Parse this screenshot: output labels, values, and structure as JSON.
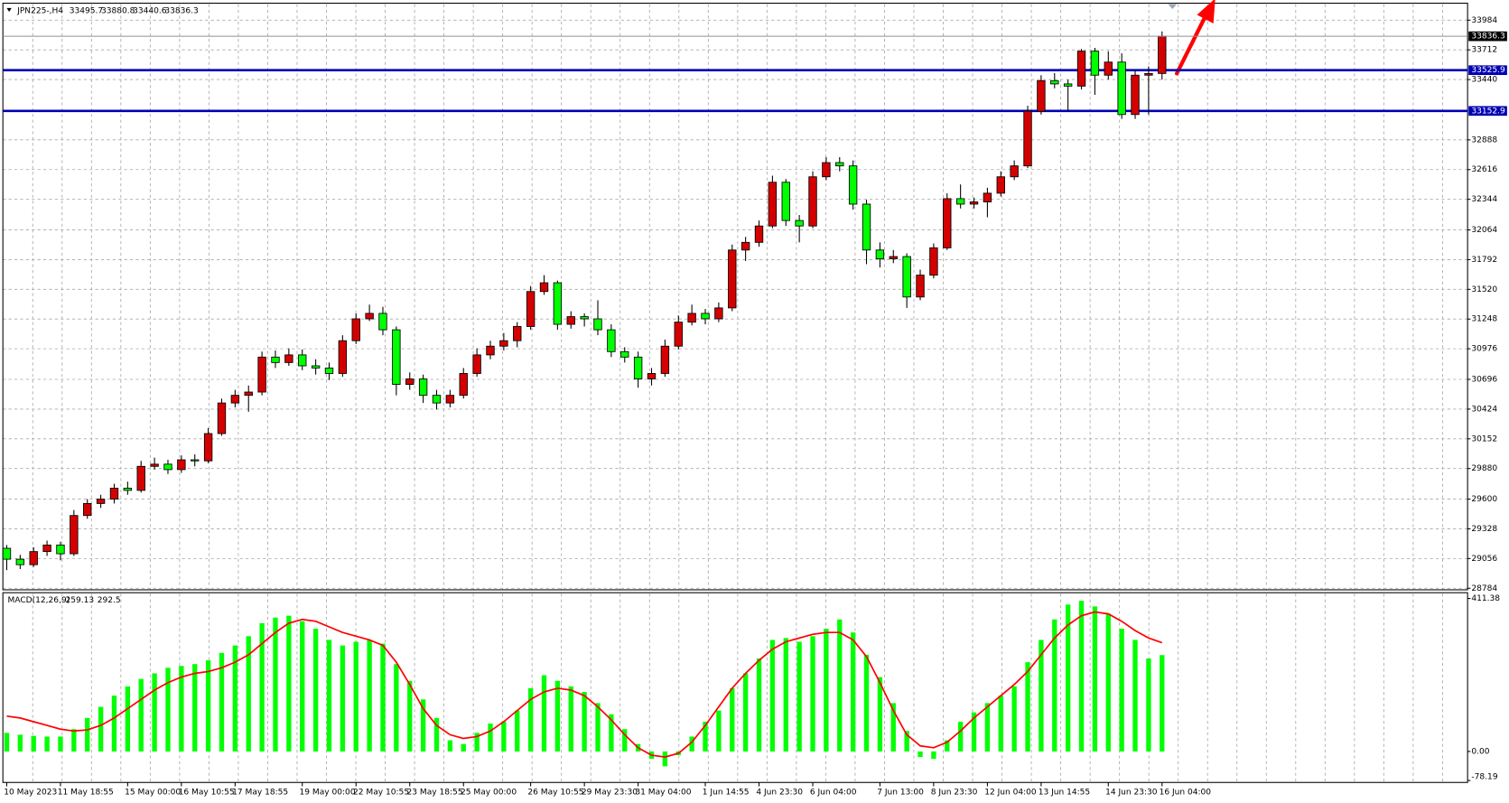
{
  "chart_data": {
    "type": "candlestick",
    "title": "JPN225-,H4",
    "categories": [
      "10 May 2023",
      null,
      null,
      null,
      "11 May 18:55",
      null,
      null,
      null,
      null,
      "15 May 00:00",
      null,
      null,
      null,
      "16 May 10:55",
      null,
      null,
      null,
      "17 May 18:55",
      null,
      null,
      null,
      null,
      "19 May 00:00",
      null,
      null,
      null,
      "22 May 10:55",
      null,
      null,
      null,
      "23 May 18:55",
      null,
      null,
      null,
      "25 May 00:00",
      null,
      null,
      null,
      null,
      "26 May 10:55",
      null,
      null,
      null,
      "29 May 23:30",
      null,
      null,
      null,
      "31 May 04:00",
      null,
      null,
      null,
      null,
      "1 Jun 14:55",
      null,
      null,
      null,
      "4 Jun 23:30",
      null,
      null,
      null,
      "6 Jun 04:00",
      null,
      null,
      null,
      null,
      "7 Jun 13:00",
      null,
      null,
      null,
      "8 Jun 23:30",
      null,
      null,
      null,
      "12 Jun 04:00",
      null,
      null,
      null,
      "13 Jun 14:55",
      null,
      null,
      null,
      null,
      "14 Jun 23:30",
      null,
      null,
      null,
      "16 Jun 04:00"
    ],
    "ohlc": [
      [
        29150,
        29180,
        28950,
        29050
      ],
      [
        29050,
        29090,
        28960,
        29000
      ],
      [
        29000,
        29160,
        28980,
        29120
      ],
      [
        29120,
        29220,
        29080,
        29180
      ],
      [
        29180,
        29210,
        29040,
        29100
      ],
      [
        29100,
        29500,
        29080,
        29450
      ],
      [
        29450,
        29600,
        29420,
        29560
      ],
      [
        29560,
        29640,
        29520,
        29600
      ],
      [
        29600,
        29740,
        29560,
        29700
      ],
      [
        29700,
        29760,
        29640,
        29680
      ],
      [
        29680,
        29950,
        29660,
        29900
      ],
      [
        29900,
        29980,
        29870,
        29920
      ],
      [
        29920,
        29960,
        29830,
        29870
      ],
      [
        29870,
        30000,
        29840,
        29960
      ],
      [
        29960,
        30010,
        29900,
        29950
      ],
      [
        29950,
        30250,
        29930,
        30200
      ],
      [
        30200,
        30520,
        30180,
        30480
      ],
      [
        30480,
        30600,
        30440,
        30550
      ],
      [
        30550,
        30640,
        30400,
        30580
      ],
      [
        30580,
        30950,
        30550,
        30900
      ],
      [
        30900,
        30960,
        30800,
        30850
      ],
      [
        30850,
        30980,
        30820,
        30920
      ],
      [
        30920,
        30970,
        30780,
        30820
      ],
      [
        30820,
        30880,
        30740,
        30800
      ],
      [
        30800,
        30850,
        30690,
        30750
      ],
      [
        30750,
        31100,
        30720,
        31050
      ],
      [
        31050,
        31300,
        31020,
        31250
      ],
      [
        31250,
        31380,
        31230,
        31300
      ],
      [
        31300,
        31360,
        31100,
        31150
      ],
      [
        31150,
        31180,
        30550,
        30650
      ],
      [
        30650,
        30760,
        30600,
        30700
      ],
      [
        30700,
        30740,
        30480,
        30550
      ],
      [
        30550,
        30600,
        30420,
        30480
      ],
      [
        30480,
        30600,
        30440,
        30550
      ],
      [
        30550,
        30800,
        30520,
        30750
      ],
      [
        30750,
        30980,
        30720,
        30920
      ],
      [
        30920,
        31050,
        30880,
        31000
      ],
      [
        31000,
        31120,
        30960,
        31050
      ],
      [
        31050,
        31220,
        30990,
        31180
      ],
      [
        31180,
        31550,
        31150,
        31500
      ],
      [
        31500,
        31650,
        31470,
        31580
      ],
      [
        31580,
        31600,
        31150,
        31200
      ],
      [
        31200,
        31320,
        31160,
        31270
      ],
      [
        31270,
        31300,
        31180,
        31250
      ],
      [
        31250,
        31420,
        31100,
        31150
      ],
      [
        31150,
        31200,
        30900,
        30950
      ],
      [
        30950,
        30990,
        30850,
        30900
      ],
      [
        30900,
        30950,
        30620,
        30700
      ],
      [
        30700,
        30800,
        30640,
        30750
      ],
      [
        30750,
        31060,
        30720,
        31000
      ],
      [
        31000,
        31280,
        30970,
        31220
      ],
      [
        31220,
        31380,
        31190,
        31300
      ],
      [
        31300,
        31340,
        31200,
        31250
      ],
      [
        31250,
        31400,
        31220,
        31350
      ],
      [
        31350,
        31930,
        31320,
        31880
      ],
      [
        31880,
        32000,
        31780,
        31950
      ],
      [
        31950,
        32150,
        31910,
        32100
      ],
      [
        32100,
        32560,
        32080,
        32500
      ],
      [
        32500,
        32530,
        32100,
        32150
      ],
      [
        32150,
        32200,
        31950,
        32100
      ],
      [
        32100,
        32600,
        32080,
        32550
      ],
      [
        32550,
        32730,
        32520,
        32680
      ],
      [
        32680,
        32730,
        32600,
        32650
      ],
      [
        32650,
        32700,
        32250,
        32300
      ],
      [
        32300,
        32340,
        31750,
        31880
      ],
      [
        31880,
        31950,
        31720,
        31800
      ],
      [
        31800,
        31880,
        31760,
        31820
      ],
      [
        31820,
        31850,
        31350,
        31450
      ],
      [
        31450,
        31700,
        31420,
        31650
      ],
      [
        31650,
        31940,
        31620,
        31900
      ],
      [
        31900,
        32400,
        31880,
        32350
      ],
      [
        32350,
        32480,
        32260,
        32300
      ],
      [
        32300,
        32360,
        32260,
        32320
      ],
      [
        32320,
        32450,
        32180,
        32400
      ],
      [
        32400,
        32600,
        32370,
        32550
      ],
      [
        32550,
        32700,
        32520,
        32650
      ],
      [
        32650,
        33200,
        32630,
        33150
      ],
      [
        33150,
        33480,
        33120,
        33430
      ],
      [
        33430,
        33500,
        33360,
        33400
      ],
      [
        33400,
        33440,
        33150,
        33380
      ],
      [
        33380,
        33720,
        33350,
        33700
      ],
      [
        33700,
        33730,
        33300,
        33480
      ],
      [
        33480,
        33700,
        33440,
        33600
      ],
      [
        33600,
        33680,
        33080,
        33120
      ],
      [
        33120,
        33520,
        33080,
        33480
      ],
      [
        33480,
        33560,
        33120,
        33495.7
      ],
      [
        33495.7,
        33880.8,
        33440.6,
        33836.3
      ]
    ],
    "up_color": "#d40000",
    "down_color": "#00ff00",
    "ylim": [
      28770,
      34130
    ],
    "yticks": [
      33984,
      33712,
      33440,
      32888,
      32616,
      32344,
      32064,
      31792,
      31520,
      31248,
      30976,
      30696,
      30424,
      30152,
      29880,
      29600,
      29328,
      29056,
      28784
    ],
    "grid": true,
    "levels": [
      {
        "value": 33525.9,
        "color": "#0000b4"
      },
      {
        "value": 33152.9,
        "color": "#0000b4"
      }
    ],
    "macd": {
      "type": "bar",
      "name": "MACD(12,26,9)",
      "histogram": [
        50,
        45,
        42,
        40,
        40,
        60,
        90,
        120,
        150,
        175,
        195,
        210,
        225,
        230,
        235,
        245,
        265,
        285,
        310,
        345,
        360,
        365,
        350,
        330,
        300,
        285,
        295,
        300,
        290,
        235,
        190,
        140,
        90,
        30,
        20,
        50,
        75,
        80,
        110,
        170,
        205,
        190,
        175,
        160,
        130,
        100,
        60,
        20,
        -20,
        -40,
        -10,
        40,
        80,
        110,
        170,
        210,
        250,
        300,
        305,
        295,
        310,
        330,
        355,
        320,
        260,
        200,
        130,
        55,
        -15,
        -20,
        30,
        80,
        105,
        130,
        150,
        175,
        240,
        300,
        355,
        395,
        405,
        390,
        370,
        330,
        300,
        250,
        259.13
      ],
      "histogram_color": "#00ff00",
      "signal": [
        95,
        90,
        80,
        70,
        60,
        55,
        58,
        70,
        90,
        115,
        140,
        165,
        185,
        200,
        210,
        215,
        225,
        240,
        260,
        290,
        320,
        345,
        355,
        350,
        335,
        320,
        310,
        300,
        285,
        240,
        180,
        115,
        70,
        45,
        35,
        40,
        55,
        80,
        110,
        140,
        160,
        170,
        165,
        150,
        120,
        85,
        45,
        10,
        -10,
        -15,
        -5,
        25,
        70,
        120,
        170,
        210,
        245,
        275,
        295,
        305,
        315,
        320,
        320,
        300,
        255,
        185,
        110,
        45,
        15,
        10,
        25,
        55,
        90,
        120,
        150,
        180,
        215,
        260,
        305,
        340,
        365,
        375,
        370,
        350,
        325,
        305,
        292.5
      ],
      "signal_color": "#ff0000",
      "ylim": [
        -78.19,
        411.38
      ],
      "yticks": [
        411.38,
        {
          "value": 0,
          "label": "0.00"
        },
        -78.19
      ]
    }
  }
}
